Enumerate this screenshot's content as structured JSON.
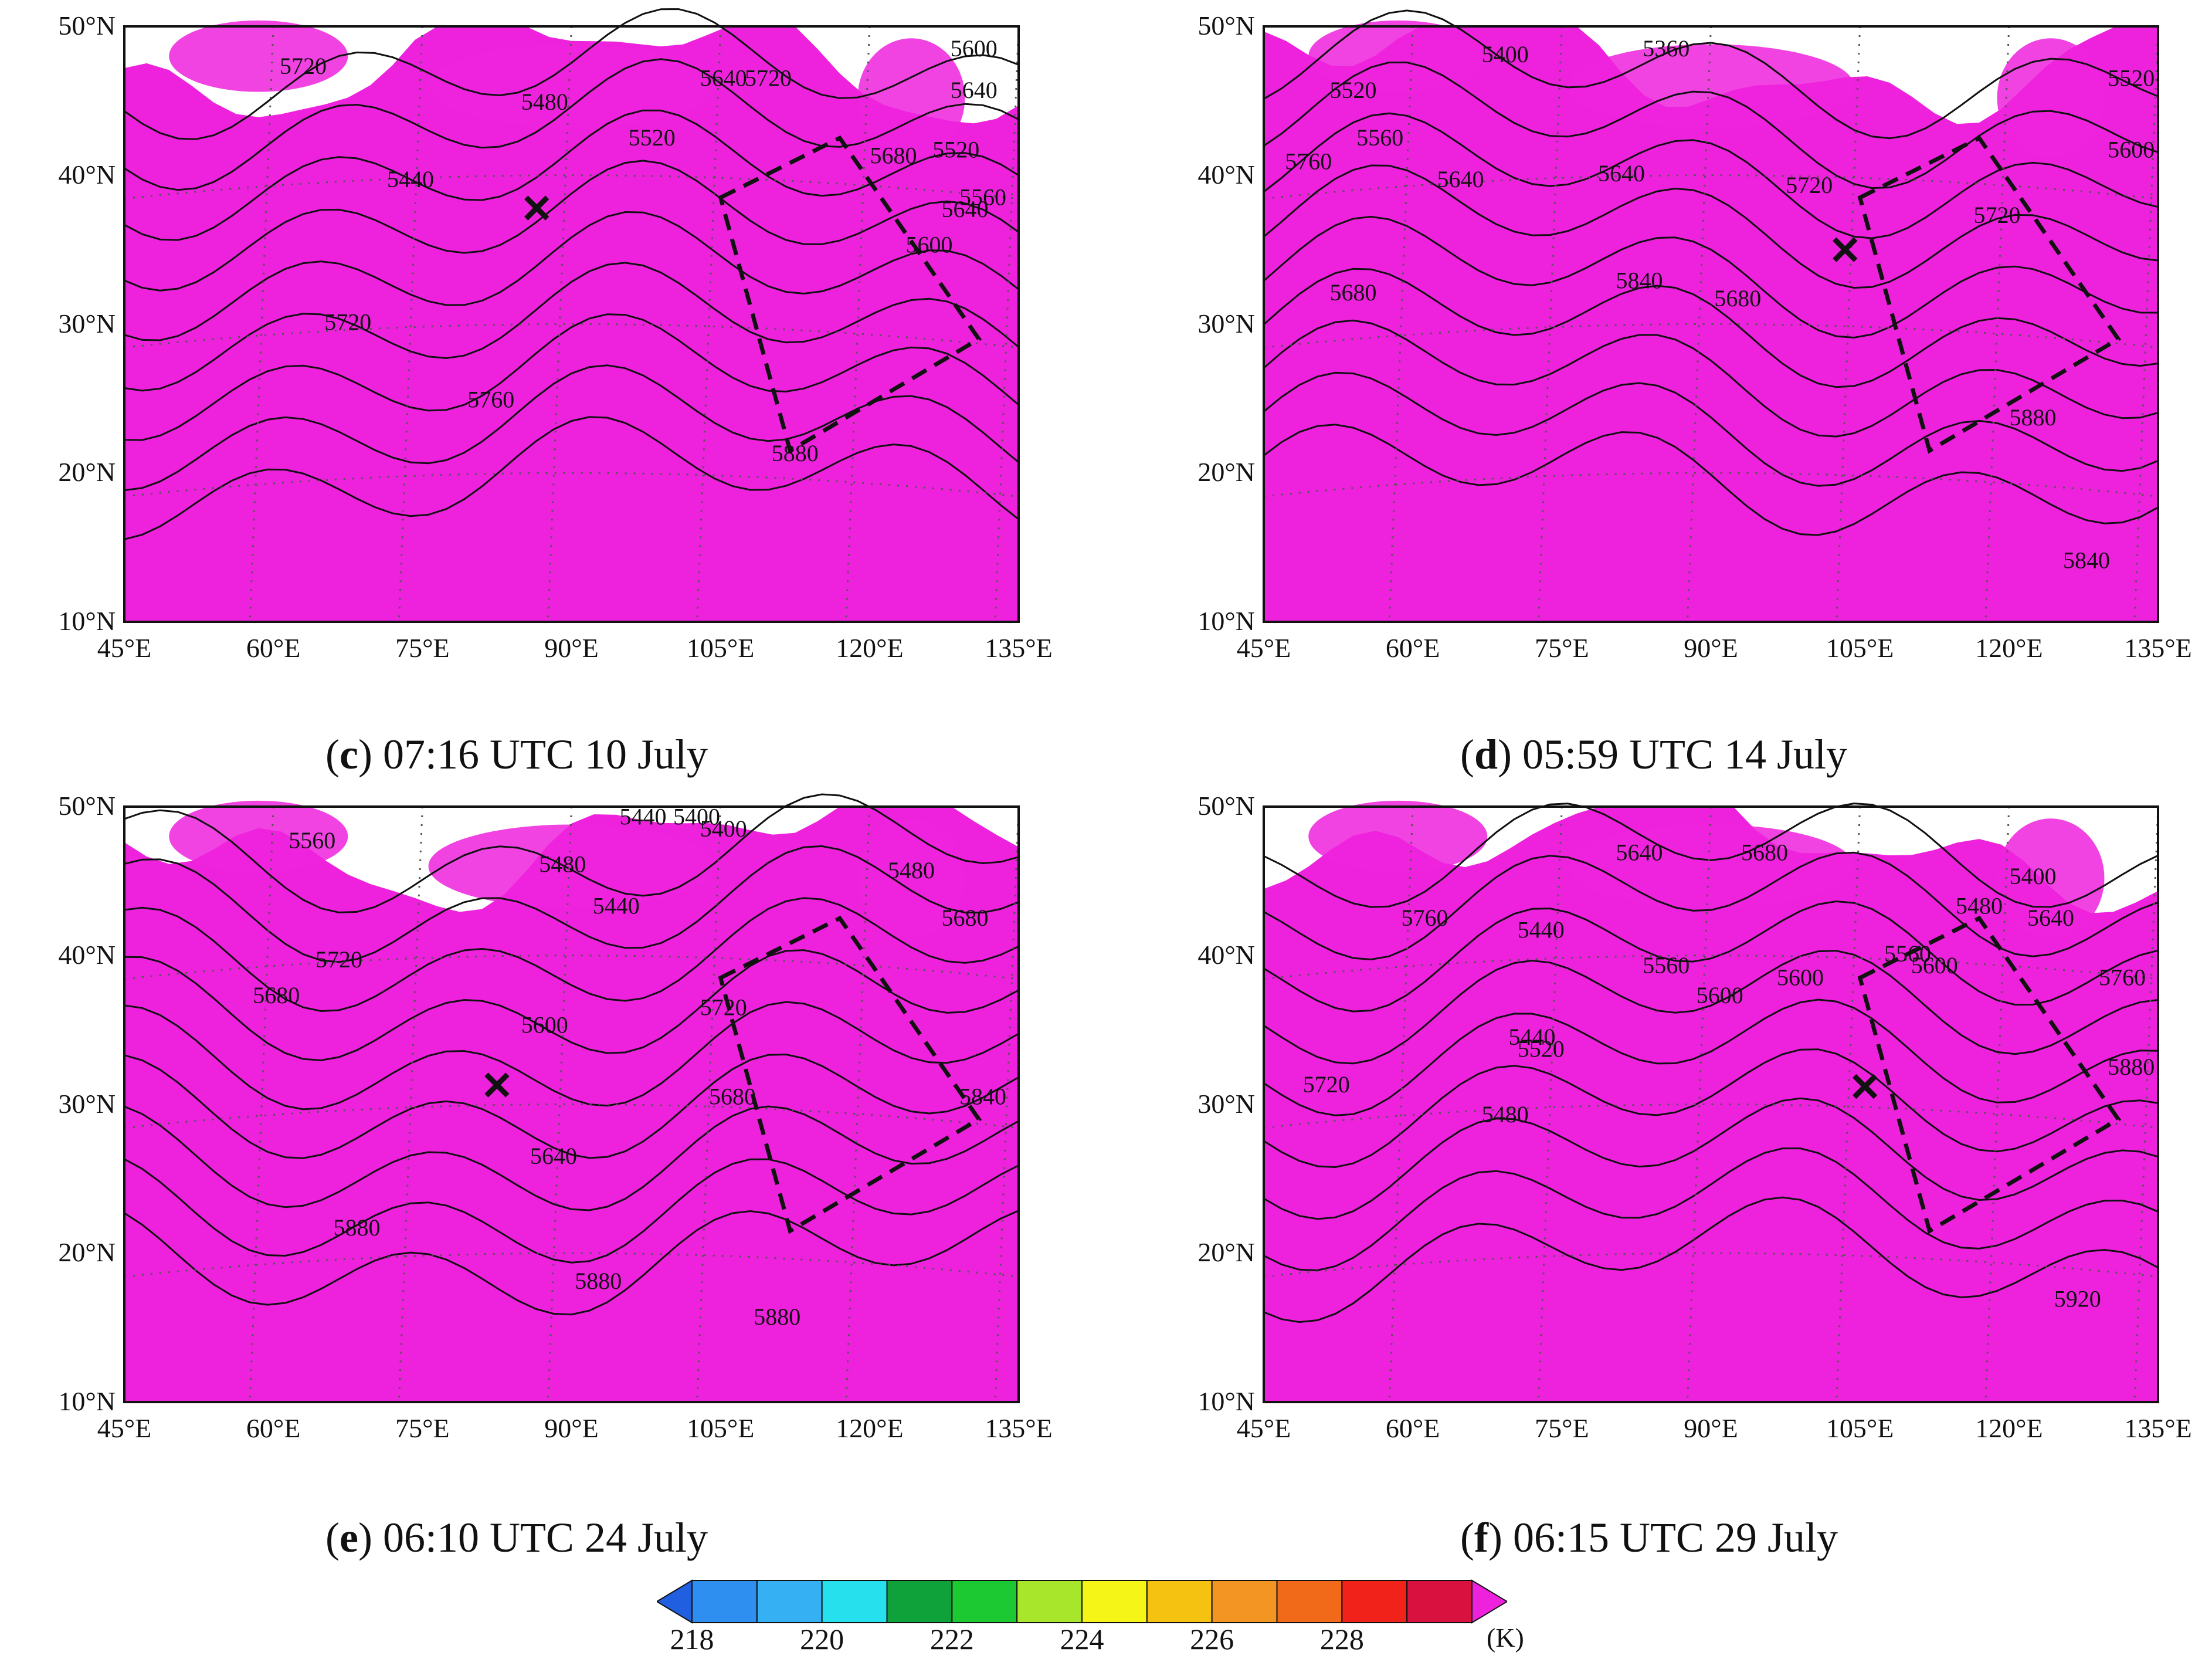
{
  "figure": {
    "panels": [
      {
        "id": "c",
        "letter": "c",
        "time": " 07:16 UTC 10 July",
        "contour_labels": [
          "5720",
          "5480",
          "5440",
          "5520",
          "5640",
          "5720",
          "5640",
          "5600",
          "5520",
          "5560",
          "5600",
          "5640",
          "5680",
          "5720",
          "5760",
          "5880"
        ],
        "storm_marker": {
          "lon": 86.5,
          "lat": 37.8
        }
      },
      {
        "id": "d",
        "letter": "d",
        "time": " 05:59 UTC 14 July",
        "contour_labels": [
          "5520",
          "5400",
          "5360",
          "5560",
          "5520",
          "5600",
          "5640",
          "5760",
          "5640",
          "5720",
          "5720",
          "5680",
          "5680",
          "5840",
          "5880",
          "5840"
        ],
        "storm_marker": {
          "lon": 103.5,
          "lat": 35.0
        }
      },
      {
        "id": "e",
        "letter": "e",
        "time": " 06:10 UTC 24 July",
        "contour_labels": [
          "5560",
          "5480",
          "5440",
          "5400",
          "5440",
          "5400",
          "5480",
          "5680",
          "5720",
          "5680",
          "5720",
          "5600",
          "5640",
          "5680",
          "5840",
          "5880",
          "5880",
          "5880"
        ],
        "storm_marker": {
          "lon": 82.5,
          "lat": 31.3
        }
      },
      {
        "id": "f",
        "letter": "f",
        "time": " 06:15 UTC 29 July",
        "contour_labels": [
          "5640",
          "5680",
          "5440",
          "5400",
          "5480",
          "5560",
          "5600",
          "5560",
          "5600",
          "5440",
          "5480",
          "5520",
          "5600",
          "5640",
          "5760",
          "5720",
          "5760",
          "5880",
          "5920"
        ],
        "storm_marker": {
          "lon": 105.5,
          "lat": 31.2
        }
      }
    ],
    "lat_labels": [
      "50°N",
      "40°N",
      "30°N",
      "20°N",
      "10°N"
    ],
    "lon_labels": [
      "45°E",
      "60°E",
      "75°E",
      "90°E",
      "105°E",
      "120°E",
      "135°E"
    ],
    "colorbar": {
      "ticks": [
        "218",
        "220",
        "222",
        "224",
        "226",
        "228"
      ],
      "unit": "(K)",
      "colors": [
        "#1f5fe0",
        "#2f8ff0",
        "#35b0f3",
        "#27e0ee",
        "#0fa23a",
        "#1dc933",
        "#a8e62b",
        "#f5f518",
        "#f5c212",
        "#f29522",
        "#f06a1a",
        "#f0221a",
        "#d8113f",
        "#ee22dd"
      ]
    }
  }
}
